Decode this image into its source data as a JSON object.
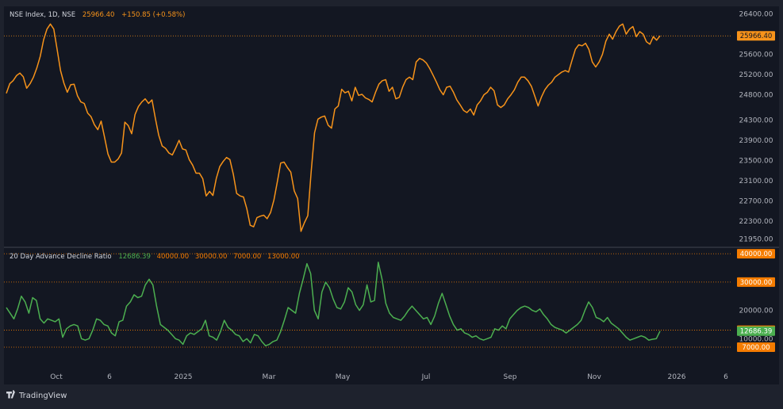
{
  "header": {
    "symbol": "NSE Index, 1D, NSE",
    "last": "25966.40",
    "change": "+150.85 (+0.58%)"
  },
  "indicator": {
    "name": "20 Day Advance Decline Ratio",
    "value": "12686.39",
    "levels": [
      "40000.00",
      "30000.00",
      "7000.00",
      "13000.00"
    ]
  },
  "branding": {
    "label": "TradingView",
    "icon": "tradingview-logo-icon"
  },
  "colors": {
    "background": "#131722",
    "frame": "#1e222d",
    "price_line": "#f7931a",
    "adr_line": "#4caf50",
    "level_line": "#f57c00",
    "text": "#b2b5be"
  },
  "chart_data": [
    {
      "type": "line",
      "title": "NSE Index, 1D, NSE",
      "x_axis_ticks": [
        "Oct",
        "6",
        "2025",
        "Mar",
        "May",
        "Jul",
        "Sep",
        "Nov",
        "2026",
        "6"
      ],
      "y_ticks": [
        26400,
        26000,
        25600,
        25200,
        24800,
        24300,
        23900,
        23500,
        23100,
        22700,
        22300,
        21950
      ],
      "y_tick_labels": [
        "26400.00",
        "26000.00",
        "25600.00",
        "25200.00",
        "24800.00",
        "24300.00",
        "23900.00",
        "23500.00",
        "23100.00",
        "22700.00",
        "22300.00",
        "21950.00"
      ],
      "ylim": [
        21800,
        26550
      ],
      "last_value_label": "25966.40",
      "series": [
        {
          "values": [
            24830,
            25020,
            25080,
            25180,
            25230,
            25160,
            24930,
            25020,
            25150,
            25330,
            25560,
            25890,
            26100,
            26200,
            26100,
            25700,
            25280,
            25030,
            24850,
            25000,
            25010,
            24780,
            24660,
            24630,
            24440,
            24370,
            24210,
            24110,
            24280,
            23960,
            23630,
            23470,
            23470,
            23530,
            23650,
            24260,
            24190,
            24030,
            24410,
            24570,
            24660,
            24720,
            24630,
            24700,
            24330,
            24000,
            23790,
            23740,
            23650,
            23610,
            23750,
            23900,
            23730,
            23710,
            23520,
            23410,
            23250,
            23250,
            23140,
            22800,
            22890,
            22810,
            23150,
            23380,
            23480,
            23560,
            23520,
            23230,
            22850,
            22800,
            22780,
            22550,
            22220,
            22190,
            22370,
            22400,
            22420,
            22350,
            22470,
            22720,
            23080,
            23450,
            23470,
            23360,
            23270,
            22900,
            22750,
            22100,
            22270,
            22410,
            23270,
            24050,
            24320,
            24360,
            24380,
            24200,
            24140,
            24520,
            24580,
            24910,
            24840,
            24870,
            24680,
            24950,
            24790,
            24810,
            24740,
            24710,
            24660,
            24850,
            25010,
            25080,
            25100,
            24870,
            24950,
            24720,
            24750,
            24950,
            25100,
            25150,
            25100,
            25450,
            25520,
            25490,
            25430,
            25320,
            25190,
            25050,
            24900,
            24800,
            24950,
            24970,
            24850,
            24700,
            24600,
            24490,
            24450,
            24520,
            24400,
            24600,
            24680,
            24800,
            24850,
            24950,
            24880,
            24600,
            24550,
            24600,
            24720,
            24800,
            24900,
            25050,
            25150,
            25150,
            25080,
            24970,
            24780,
            24580,
            24760,
            24900,
            24990,
            25050,
            25150,
            25200,
            25250,
            25280,
            25250,
            25480,
            25700,
            25790,
            25770,
            25820,
            25700,
            25450,
            25350,
            25450,
            25600,
            25860,
            26000,
            25900,
            26050,
            26160,
            26200,
            26000,
            26100,
            26150,
            25950,
            26050,
            26000,
            25850,
            25800,
            25950,
            25880,
            25966.4
          ]
        }
      ]
    },
    {
      "type": "line",
      "title": "20 Day Advance Decline Ratio",
      "x_axis_ticks": [
        "Oct",
        "6",
        "2025",
        "Mar",
        "May",
        "Jul",
        "Sep",
        "Nov",
        "2026",
        "6"
      ],
      "y_ticks": [
        20000,
        10000
      ],
      "y_tick_labels": [
        "20000.00",
        "10000.00"
      ],
      "ylim": [
        0,
        42000
      ],
      "levels": [
        40000,
        30000,
        13000,
        7000
      ],
      "level_labels": [
        "40000.00",
        "30000.00",
        "13000.00",
        "7000.00"
      ],
      "last_value_label": "12686.39",
      "series": [
        {
          "name": "20 Day Advance Decline Ratio",
          "values": [
            21000,
            19000,
            17000,
            20500,
            25000,
            23000,
            19000,
            24500,
            23500,
            17000,
            15500,
            17000,
            16500,
            16000,
            17000,
            10500,
            13500,
            14500,
            15000,
            14500,
            10000,
            9500,
            10000,
            13000,
            17000,
            16500,
            15000,
            14500,
            12000,
            11000,
            16000,
            16500,
            21500,
            23000,
            25500,
            24500,
            25000,
            29000,
            31000,
            29000,
            21500,
            15000,
            14000,
            13000,
            11500,
            10000,
            9500,
            8000,
            11000,
            12000,
            11500,
            12500,
            13500,
            16500,
            11000,
            10500,
            9500,
            12500,
            16500,
            14000,
            13000,
            11500,
            11000,
            9000,
            10000,
            8500,
            11500,
            11000,
            9000,
            7500,
            8000,
            9000,
            9500,
            12500,
            16500,
            21000,
            20000,
            19000,
            26000,
            31000,
            36500,
            33000,
            20000,
            17000,
            26500,
            30000,
            28000,
            24000,
            21000,
            20500,
            23000,
            28000,
            26500,
            22000,
            20000,
            22000,
            29000,
            23000,
            23500,
            37000,
            31000,
            22500,
            19000,
            17500,
            17000,
            16500,
            18000,
            20000,
            21500,
            20000,
            18500,
            17000,
            17500,
            15000,
            18000,
            22500,
            26000,
            22000,
            18000,
            15000,
            13000,
            13500,
            12000,
            11500,
            10500,
            11000,
            10000,
            9500,
            10000,
            10500,
            13500,
            13000,
            14500,
            13500,
            17000,
            18500,
            20000,
            21000,
            21500,
            21000,
            20000,
            19500,
            20500,
            18500,
            17000,
            15000,
            14000,
            13500,
            13000,
            12000,
            13000,
            14000,
            15000,
            16500,
            20000,
            23000,
            21000,
            17500,
            17000,
            16000,
            17500,
            15500,
            14500,
            13500,
            12000,
            10500,
            9500,
            10000,
            10500,
            11000,
            10500,
            9500,
            9800,
            10000,
            12686.39
          ]
        }
      ]
    }
  ]
}
